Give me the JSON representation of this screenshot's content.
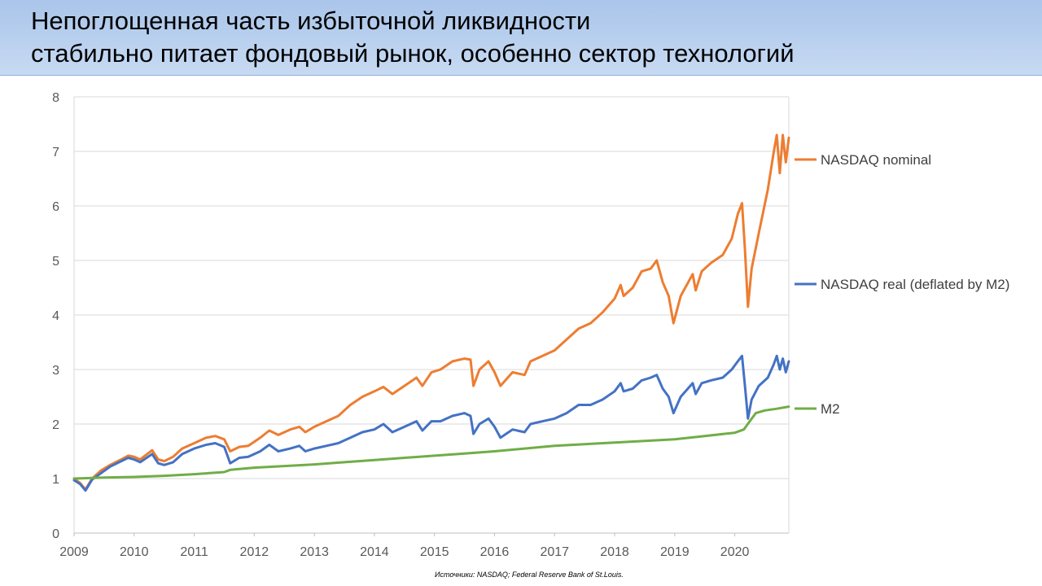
{
  "header": {
    "title_line1": "Непоглощенная часть избыточной ликвидности",
    "title_line2": "стабильно питает фондовый рынок, особенно сектор технологий"
  },
  "source_note": "Источники: NASDAQ; Federal Reserve Bank of St.Louis.",
  "chart_data": {
    "type": "line",
    "title": "",
    "xlabel": "",
    "ylabel": "",
    "xlim": [
      2009.0,
      2020.9
    ],
    "ylim": [
      0,
      8
    ],
    "yticks": [
      "0",
      "1",
      "2",
      "3",
      "4",
      "5",
      "6",
      "7",
      "8"
    ],
    "xticks": [
      "2009",
      "2010",
      "2011",
      "2012",
      "2013",
      "2014",
      "2015",
      "2016",
      "2017",
      "2018",
      "2019",
      "2020"
    ],
    "grid": "horizontal",
    "legend": "right, labels at line ends",
    "series": [
      {
        "name": "NASDAQ nominal",
        "color": "#ed7d31",
        "points": [
          [
            2009.0,
            1.0
          ],
          [
            2009.1,
            0.92
          ],
          [
            2009.19,
            0.8
          ],
          [
            2009.3,
            1.0
          ],
          [
            2009.45,
            1.15
          ],
          [
            2009.6,
            1.25
          ],
          [
            2009.75,
            1.33
          ],
          [
            2009.9,
            1.42
          ],
          [
            2010.0,
            1.4
          ],
          [
            2010.1,
            1.35
          ],
          [
            2010.3,
            1.52
          ],
          [
            2010.4,
            1.35
          ],
          [
            2010.5,
            1.32
          ],
          [
            2010.65,
            1.4
          ],
          [
            2010.8,
            1.55
          ],
          [
            2011.0,
            1.65
          ],
          [
            2011.2,
            1.75
          ],
          [
            2011.35,
            1.78
          ],
          [
            2011.5,
            1.72
          ],
          [
            2011.6,
            1.5
          ],
          [
            2011.75,
            1.58
          ],
          [
            2011.9,
            1.6
          ],
          [
            2012.1,
            1.75
          ],
          [
            2012.25,
            1.88
          ],
          [
            2012.4,
            1.8
          ],
          [
            2012.6,
            1.9
          ],
          [
            2012.75,
            1.95
          ],
          [
            2012.85,
            1.85
          ],
          [
            2013.0,
            1.95
          ],
          [
            2013.2,
            2.05
          ],
          [
            2013.4,
            2.15
          ],
          [
            2013.6,
            2.35
          ],
          [
            2013.8,
            2.5
          ],
          [
            2014.0,
            2.6
          ],
          [
            2014.15,
            2.68
          ],
          [
            2014.3,
            2.55
          ],
          [
            2014.5,
            2.7
          ],
          [
            2014.7,
            2.85
          ],
          [
            2014.8,
            2.7
          ],
          [
            2014.95,
            2.95
          ],
          [
            2015.1,
            3.0
          ],
          [
            2015.3,
            3.15
          ],
          [
            2015.5,
            3.2
          ],
          [
            2015.6,
            3.18
          ],
          [
            2015.65,
            2.7
          ],
          [
            2015.75,
            3.0
          ],
          [
            2015.9,
            3.15
          ],
          [
            2016.0,
            2.95
          ],
          [
            2016.1,
            2.7
          ],
          [
            2016.3,
            2.95
          ],
          [
            2016.5,
            2.9
          ],
          [
            2016.6,
            3.15
          ],
          [
            2016.8,
            3.25
          ],
          [
            2017.0,
            3.35
          ],
          [
            2017.2,
            3.55
          ],
          [
            2017.4,
            3.75
          ],
          [
            2017.6,
            3.85
          ],
          [
            2017.8,
            4.05
          ],
          [
            2018.0,
            4.3
          ],
          [
            2018.1,
            4.55
          ],
          [
            2018.15,
            4.35
          ],
          [
            2018.3,
            4.5
          ],
          [
            2018.45,
            4.8
          ],
          [
            2018.6,
            4.85
          ],
          [
            2018.7,
            5.0
          ],
          [
            2018.8,
            4.6
          ],
          [
            2018.9,
            4.35
          ],
          [
            2018.98,
            3.85
          ],
          [
            2019.1,
            4.35
          ],
          [
            2019.3,
            4.75
          ],
          [
            2019.35,
            4.45
          ],
          [
            2019.45,
            4.8
          ],
          [
            2019.6,
            4.95
          ],
          [
            2019.8,
            5.1
          ],
          [
            2019.95,
            5.4
          ],
          [
            2020.05,
            5.85
          ],
          [
            2020.12,
            6.05
          ],
          [
            2020.17,
            5.2
          ],
          [
            2020.22,
            4.15
          ],
          [
            2020.28,
            4.85
          ],
          [
            2020.4,
            5.5
          ],
          [
            2020.55,
            6.3
          ],
          [
            2020.65,
            7.0
          ],
          [
            2020.7,
            7.3
          ],
          [
            2020.75,
            6.6
          ],
          [
            2020.8,
            7.3
          ],
          [
            2020.85,
            6.8
          ],
          [
            2020.9,
            7.25
          ]
        ]
      },
      {
        "name": "NASDAQ real (deflated by M2)",
        "color": "#4472c4",
        "points": [
          [
            2009.0,
            0.97
          ],
          [
            2009.1,
            0.9
          ],
          [
            2009.19,
            0.78
          ],
          [
            2009.3,
            0.98
          ],
          [
            2009.45,
            1.1
          ],
          [
            2009.6,
            1.22
          ],
          [
            2009.75,
            1.3
          ],
          [
            2009.9,
            1.38
          ],
          [
            2010.0,
            1.35
          ],
          [
            2010.1,
            1.3
          ],
          [
            2010.3,
            1.45
          ],
          [
            2010.4,
            1.28
          ],
          [
            2010.5,
            1.25
          ],
          [
            2010.65,
            1.3
          ],
          [
            2010.8,
            1.45
          ],
          [
            2011.0,
            1.55
          ],
          [
            2011.2,
            1.62
          ],
          [
            2011.35,
            1.65
          ],
          [
            2011.5,
            1.58
          ],
          [
            2011.6,
            1.28
          ],
          [
            2011.75,
            1.38
          ],
          [
            2011.9,
            1.4
          ],
          [
            2012.1,
            1.5
          ],
          [
            2012.25,
            1.62
          ],
          [
            2012.4,
            1.5
          ],
          [
            2012.6,
            1.55
          ],
          [
            2012.75,
            1.6
          ],
          [
            2012.85,
            1.5
          ],
          [
            2013.0,
            1.55
          ],
          [
            2013.2,
            1.6
          ],
          [
            2013.4,
            1.65
          ],
          [
            2013.6,
            1.75
          ],
          [
            2013.8,
            1.85
          ],
          [
            2014.0,
            1.9
          ],
          [
            2014.15,
            2.0
          ],
          [
            2014.3,
            1.85
          ],
          [
            2014.5,
            1.95
          ],
          [
            2014.7,
            2.05
          ],
          [
            2014.8,
            1.88
          ],
          [
            2014.95,
            2.05
          ],
          [
            2015.1,
            2.05
          ],
          [
            2015.3,
            2.15
          ],
          [
            2015.5,
            2.2
          ],
          [
            2015.6,
            2.15
          ],
          [
            2015.65,
            1.82
          ],
          [
            2015.75,
            2.0
          ],
          [
            2015.9,
            2.1
          ],
          [
            2016.0,
            1.95
          ],
          [
            2016.1,
            1.75
          ],
          [
            2016.3,
            1.9
          ],
          [
            2016.5,
            1.85
          ],
          [
            2016.6,
            2.0
          ],
          [
            2016.8,
            2.05
          ],
          [
            2017.0,
            2.1
          ],
          [
            2017.2,
            2.2
          ],
          [
            2017.4,
            2.35
          ],
          [
            2017.6,
            2.35
          ],
          [
            2017.8,
            2.45
          ],
          [
            2018.0,
            2.6
          ],
          [
            2018.1,
            2.75
          ],
          [
            2018.15,
            2.6
          ],
          [
            2018.3,
            2.65
          ],
          [
            2018.45,
            2.8
          ],
          [
            2018.6,
            2.85
          ],
          [
            2018.7,
            2.9
          ],
          [
            2018.8,
            2.65
          ],
          [
            2018.9,
            2.5
          ],
          [
            2018.98,
            2.2
          ],
          [
            2019.1,
            2.5
          ],
          [
            2019.3,
            2.75
          ],
          [
            2019.35,
            2.55
          ],
          [
            2019.45,
            2.75
          ],
          [
            2019.6,
            2.8
          ],
          [
            2019.8,
            2.85
          ],
          [
            2019.95,
            3.0
          ],
          [
            2020.05,
            3.15
          ],
          [
            2020.12,
            3.25
          ],
          [
            2020.17,
            2.7
          ],
          [
            2020.22,
            2.1
          ],
          [
            2020.28,
            2.45
          ],
          [
            2020.4,
            2.7
          ],
          [
            2020.55,
            2.85
          ],
          [
            2020.65,
            3.1
          ],
          [
            2020.7,
            3.25
          ],
          [
            2020.75,
            3.0
          ],
          [
            2020.8,
            3.2
          ],
          [
            2020.85,
            2.95
          ],
          [
            2020.9,
            3.15
          ]
        ]
      },
      {
        "name": "M2",
        "color": "#70ad47",
        "points": [
          [
            2009.0,
            1.0
          ],
          [
            2009.5,
            1.02
          ],
          [
            2010.0,
            1.03
          ],
          [
            2010.5,
            1.05
          ],
          [
            2011.0,
            1.08
          ],
          [
            2011.5,
            1.12
          ],
          [
            2011.6,
            1.16
          ],
          [
            2012.0,
            1.2
          ],
          [
            2012.5,
            1.23
          ],
          [
            2013.0,
            1.26
          ],
          [
            2013.5,
            1.3
          ],
          [
            2014.0,
            1.34
          ],
          [
            2014.5,
            1.38
          ],
          [
            2015.0,
            1.42
          ],
          [
            2015.5,
            1.46
          ],
          [
            2016.0,
            1.5
          ],
          [
            2016.5,
            1.55
          ],
          [
            2017.0,
            1.6
          ],
          [
            2017.5,
            1.63
          ],
          [
            2018.0,
            1.66
          ],
          [
            2018.5,
            1.69
          ],
          [
            2019.0,
            1.72
          ],
          [
            2019.5,
            1.78
          ],
          [
            2020.0,
            1.84
          ],
          [
            2020.15,
            1.9
          ],
          [
            2020.25,
            2.05
          ],
          [
            2020.35,
            2.2
          ],
          [
            2020.5,
            2.25
          ],
          [
            2020.7,
            2.28
          ],
          [
            2020.9,
            2.32
          ]
        ]
      }
    ]
  }
}
